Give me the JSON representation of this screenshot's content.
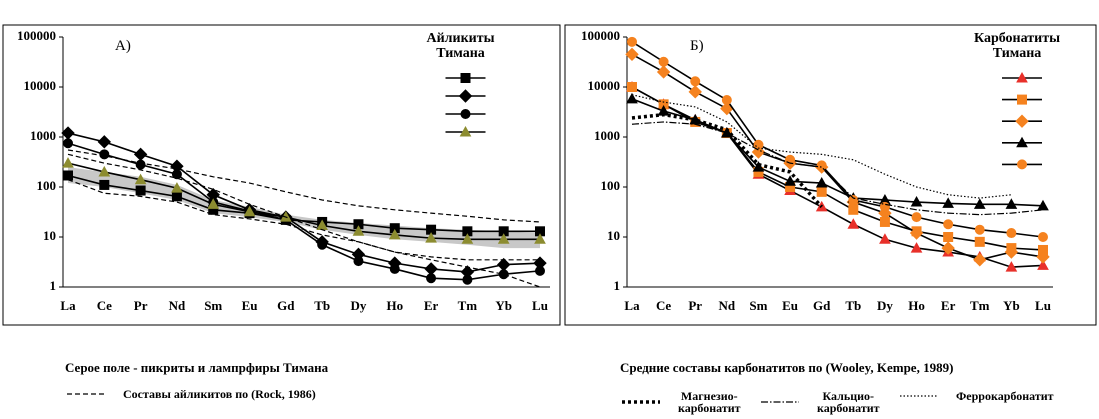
{
  "chart_data": [
    {
      "type": "line",
      "annotation": "A)",
      "legend_title": "Айликиты Тимана",
      "log_scale": true,
      "categories": [
        "La",
        "Ce",
        "Pr",
        "Nd",
        "Sm",
        "Eu",
        "Gd",
        "Tb",
        "Dy",
        "Ho",
        "Er",
        "Tm",
        "Yb",
        "Lu"
      ],
      "ylim": [
        1,
        100000
      ],
      "yticks": [
        1,
        10,
        100,
        1000,
        10000,
        100000
      ],
      "band": {
        "name": "Серое поле - пикриты и лампрфиры Тимана",
        "color": "#c8c8c8",
        "lower": [
          120,
          100,
          75,
          55,
          30,
          25,
          20,
          14,
          11,
          9,
          8,
          7,
          6,
          6
        ],
        "upper": [
          250,
          200,
          160,
          110,
          55,
          40,
          28,
          22,
          19,
          17,
          15,
          14,
          13,
          12
        ]
      },
      "series": [
        {
          "color": "#000000",
          "marker": "square",
          "marker_color": "#000000",
          "values": [
            170,
            110,
            85,
            65,
            35,
            30,
            22,
            20,
            18,
            15,
            14,
            13,
            13,
            13
          ]
        },
        {
          "color": "#000000",
          "marker": "diamond",
          "marker_color": "#000000",
          "values": [
            1200,
            800,
            450,
            260,
            70,
            35,
            25,
            8,
            4.5,
            3,
            2.3,
            2,
            2.8,
            3
          ]
        },
        {
          "color": "#000000",
          "marker": "circle",
          "marker_color": "#000000",
          "values": [
            750,
            450,
            280,
            180,
            50,
            33,
            22,
            7,
            3.3,
            2.3,
            1.5,
            1.4,
            1.8,
            2.1
          ]
        },
        {
          "color": "#000000",
          "marker": "triangle",
          "marker_color": "#8c8c30",
          "values": [
            300,
            200,
            140,
            95,
            45,
            32,
            25,
            17,
            13,
            11,
            9.5,
            9,
            9,
            9
          ]
        },
        {
          "name": "Составы айликитов по (Rock, 1986)",
          "color": "#000000",
          "dash": "dashed",
          "values": [
            550,
            420,
            300,
            230,
            160,
            120,
            80,
            55,
            42,
            35,
            30,
            26,
            22,
            20
          ]
        },
        {
          "color": "#000000",
          "dash": "dashed",
          "values": [
            450,
            300,
            220,
            150,
            90,
            45,
            25,
            14,
            8,
            5,
            4,
            3.5,
            3.5,
            3.5
          ]
        },
        {
          "color": "#000000",
          "dash": "dashed",
          "values": [
            140,
            75,
            65,
            50,
            28,
            23,
            18,
            11,
            8,
            5,
            3.5,
            2.5,
            1.8,
            1
          ]
        }
      ]
    },
    {
      "type": "line",
      "annotation": "Б)",
      "legend_title": "Карбонатиты Тимана",
      "log_scale": true,
      "note": "Средние составы карбонатитов по (Wooley, Kempe, 1989)",
      "categories": [
        "La",
        "Ce",
        "Pr",
        "Nd",
        "Sm",
        "Eu",
        "Gd",
        "Tb",
        "Dy",
        "Ho",
        "Er",
        "Tm",
        "Yb",
        "Lu"
      ],
      "ylim": [
        1,
        100000
      ],
      "yticks": [
        1,
        10,
        100,
        1000,
        10000,
        100000
      ],
      "series": [
        {
          "color": "#000000",
          "marker": "triangle",
          "marker_color": "#e8302a",
          "values": [
            10000,
            4500,
            2200,
            1200,
            180,
            85,
            40,
            18,
            9,
            6,
            5,
            4,
            2.5,
            2.7
          ]
        },
        {
          "color": "#000000",
          "marker": "square",
          "marker_color": "#f5821f",
          "values": [
            10000,
            4500,
            2000,
            1200,
            200,
            100,
            80,
            35,
            20,
            13,
            10,
            8,
            6,
            5.5
          ]
        },
        {
          "color": "#000000",
          "marker": "diamond",
          "marker_color": "#f5821f",
          "values": [
            45000,
            20000,
            8000,
            3700,
            500,
            300,
            250,
            50,
            30,
            12,
            6,
            3.5,
            5,
            4
          ]
        },
        {
          "color": "#000000",
          "marker": "triangle",
          "marker_color": "#000000",
          "values": [
            5800,
            3300,
            2200,
            1200,
            250,
            130,
            120,
            60,
            55,
            50,
            47,
            45,
            45,
            42
          ]
        },
        {
          "color": "#000000",
          "marker": "circle",
          "marker_color": "#f5821f",
          "values": [
            80000,
            32000,
            13000,
            5500,
            700,
            350,
            270,
            55,
            40,
            25,
            18,
            14,
            12,
            10
          ]
        },
        {
          "name": "Магнезио-\nкарбонатит",
          "color": "#000000",
          "dash": "thick-dotted",
          "values": [
            2400,
            2800,
            2200,
            1400,
            280,
            200,
            40,
            null,
            null,
            null,
            null,
            null,
            null,
            null
          ]
        },
        {
          "name": "Кальцио-\nкарбонатит",
          "color": "#000000",
          "dash": "dash-dot",
          "values": [
            1800,
            2000,
            1800,
            1200,
            550,
            300,
            250,
            60,
            45,
            35,
            30,
            28,
            30,
            35
          ]
        },
        {
          "name": "Феррокарбонатит",
          "color": "#000000",
          "dash": "dotted",
          "values": [
            7000,
            5000,
            4000,
            2000,
            600,
            500,
            450,
            350,
            180,
            100,
            70,
            60,
            70,
            null
          ]
        }
      ]
    }
  ]
}
